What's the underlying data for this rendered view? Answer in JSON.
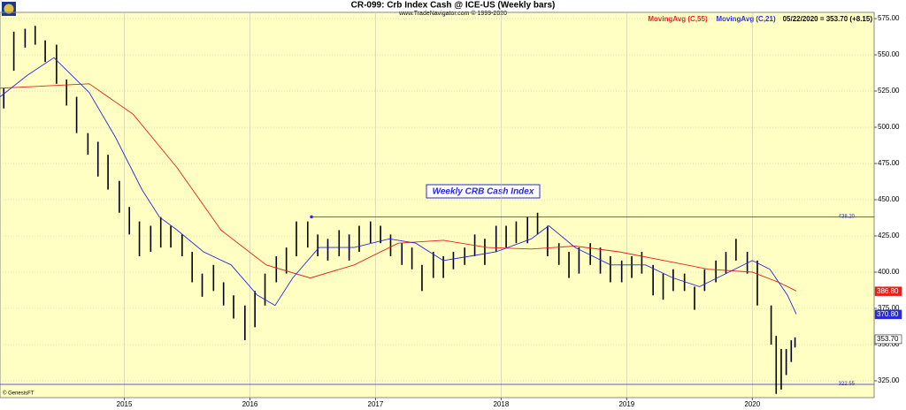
{
  "chart_data": {
    "type": "ohlc",
    "title": "CR-099:  Crb Index Cash @ ICE-US  (Weekly bars)",
    "subtitle": "www.TradeNavigator.com © 1999-2020",
    "annotation": "Weekly CRB Cash Index",
    "status": "05/22/2020 = 353.70 (+8.15)",
    "footer": "© GenesisFT",
    "background": "#ffffc4",
    "grid": true,
    "xlim": [
      2014.01,
      2020.97
    ],
    "xticks": [
      2015,
      2016,
      2017,
      2018,
      2019,
      2020
    ],
    "ylim": [
      313.4,
      579.3
    ],
    "yticks": [
      {
        "value": 325,
        "label": "325.00"
      },
      {
        "value": 350,
        "label": "350.00"
      },
      {
        "value": 375,
        "label": "375.00"
      },
      {
        "value": 400,
        "label": "400.00"
      },
      {
        "value": 425,
        "label": "425.00"
      },
      {
        "value": 450,
        "label": "450.00"
      },
      {
        "value": 475,
        "label": "475.00"
      },
      {
        "value": 500,
        "label": "500.00"
      },
      {
        "value": 525,
        "label": "525.00"
      },
      {
        "value": 550,
        "label": "550.00"
      },
      {
        "value": 575,
        "label": "575.00"
      }
    ],
    "bars": {
      "color": "#000000",
      "x": [
        2014.04,
        2014.12,
        2014.21,
        2014.29,
        2014.37,
        2014.46,
        2014.54,
        2014.62,
        2014.71,
        2014.79,
        2014.87,
        2014.96,
        2015.04,
        2015.12,
        2015.21,
        2015.29,
        2015.37,
        2015.46,
        2015.54,
        2015.62,
        2015.71,
        2015.79,
        2015.87,
        2015.96,
        2016.04,
        2016.12,
        2016.21,
        2016.29,
        2016.37,
        2016.46,
        2016.54,
        2016.62,
        2016.71,
        2016.79,
        2016.87,
        2016.96,
        2017.04,
        2017.12,
        2017.21,
        2017.29,
        2017.37,
        2017.46,
        2017.54,
        2017.62,
        2017.71,
        2017.79,
        2017.87,
        2017.96,
        2018.04,
        2018.12,
        2018.21,
        2018.29,
        2018.37,
        2018.46,
        2018.54,
        2018.62,
        2018.71,
        2018.79,
        2018.87,
        2018.96,
        2019.04,
        2019.12,
        2019.21,
        2019.29,
        2019.37,
        2019.46,
        2019.54,
        2019.62,
        2019.71,
        2019.79,
        2019.87,
        2019.96,
        2020.04,
        2020.15,
        2020.19,
        2020.23,
        2020.27,
        2020.31,
        2020.34
      ],
      "high": [
        527,
        566,
        568,
        570,
        560,
        557,
        533,
        521,
        496,
        490,
        481,
        463,
        445,
        435,
        432,
        438,
        432,
        426,
        414,
        399,
        405,
        393,
        384,
        377,
        387,
        399,
        411,
        417,
        435,
        435,
        426,
        423,
        429,
        426,
        432,
        435,
        432,
        426,
        420,
        417,
        405,
        414,
        411,
        414,
        417,
        426,
        423,
        432,
        432,
        435,
        438,
        441,
        432,
        420,
        414,
        417,
        420,
        417,
        411,
        408,
        411,
        414,
        405,
        399,
        402,
        399,
        390,
        402,
        408,
        414,
        423,
        414,
        408,
        377,
        356,
        347,
        347,
        353,
        355
      ],
      "low": [
        513,
        539,
        555,
        557,
        545,
        530,
        515,
        496,
        481,
        466,
        457,
        441,
        426,
        411,
        414,
        417,
        417,
        411,
        393,
        383,
        387,
        377,
        368,
        353,
        362,
        377,
        393,
        399,
        411,
        417,
        411,
        408,
        411,
        408,
        414,
        420,
        420,
        411,
        405,
        402,
        387,
        396,
        396,
        402,
        405,
        411,
        405,
        414,
        417,
        420,
        420,
        426,
        411,
        405,
        396,
        399,
        405,
        399,
        393,
        393,
        396,
        399,
        384,
        381,
        387,
        387,
        374,
        387,
        393,
        399,
        408,
        399,
        377,
        350,
        316,
        319,
        329,
        338,
        348
      ]
    },
    "series": [
      {
        "name": "MovingAvg (C,55)",
        "color": "#e8201a",
        "x": [
          2014.01,
          2014.72,
          2015.07,
          2015.42,
          2015.77,
          2016.13,
          2016.48,
          2016.83,
          2017.18,
          2017.54,
          2017.89,
          2018.24,
          2018.59,
          2018.94,
          2019.3,
          2019.65,
          2020.0,
          2020.21,
          2020.35
        ],
        "values": [
          527,
          530,
          509,
          472,
          429,
          405,
          396,
          405,
          420,
          422,
          417,
          416,
          418,
          414,
          408,
          402,
          400,
          393,
          387
        ]
      },
      {
        "name": "MovingAvg (C,21)",
        "color": "#2a2ad8",
        "x": [
          2014.01,
          2014.23,
          2014.44,
          2014.72,
          2014.93,
          2015.14,
          2015.28,
          2015.42,
          2015.63,
          2015.85,
          2016.06,
          2016.2,
          2016.34,
          2016.55,
          2016.83,
          2017.11,
          2017.32,
          2017.54,
          2017.75,
          2017.96,
          2018.24,
          2018.38,
          2018.59,
          2018.87,
          2019.15,
          2019.37,
          2019.58,
          2019.79,
          2020.0,
          2020.14,
          2020.28,
          2020.35
        ],
        "values": [
          521,
          536,
          548,
          524,
          493,
          457,
          438,
          429,
          414,
          405,
          384,
          377,
          396,
          417,
          417,
          423,
          420,
          408,
          411,
          414,
          423,
          432,
          417,
          405,
          405,
          396,
          390,
          399,
          408,
          402,
          384,
          371
        ]
      }
    ],
    "reference_lines": [
      {
        "value": 438.2,
        "label": "438.20",
        "x_start": 2016.49,
        "color": "#2a2ad8"
      },
      {
        "value": 322.55,
        "label": "322.55",
        "x_start": 2014.01,
        "color": "#2a2ad8"
      }
    ],
    "price_tags": [
      {
        "value": 386.8,
        "label": "386.80",
        "color": "#e8201a"
      },
      {
        "value": 370.8,
        "label": "370.80",
        "color": "#2a2ad8"
      },
      {
        "value": 353.7,
        "label": "353.70",
        "color": "#ffffff"
      }
    ]
  }
}
